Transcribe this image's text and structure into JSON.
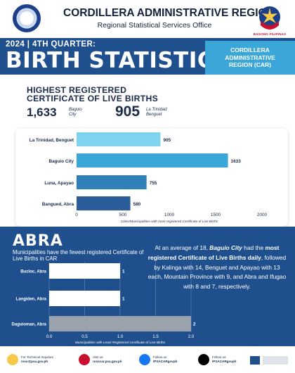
{
  "header": {
    "title": "CORDILLERA ADMINISTRATIVE REGION",
    "subtitle": "Regional Statistical Services Office",
    "logo_text": "BAGONG PILIPINAS"
  },
  "banner": {
    "kicker": "2024 | 4TH QUARTER:",
    "title": "BIRTH STATISTICS",
    "region": "CORDILLERA\nADMINISTRATIVE\nREGION (CAR)"
  },
  "highest": {
    "title": "HIGHEST REGISTERED\nCERTIFICATE OF LIVE BIRTHS",
    "stat1_value": "1,633",
    "stat1_label": "Baguio\nCity",
    "stat2_value": "905",
    "stat2_label": "La Trinidad\nBenguet"
  },
  "abra": {
    "title": "ABRA",
    "subtitle": "Municipalities have the fewest registered Certificate of Live Births in CAR",
    "summary_pre": "At an average of 18, ",
    "summary_city": "Baguio City",
    "summary_mid": " had the ",
    "summary_bold": "most registered Certificate of Live Births daily",
    "summary_post": ", followed by Kalinga with 14, Benguet and Apayao with 13 each, Mountain Province with 9, and Abra and Ifugao with 8 and 7, respectively."
  },
  "footer": {
    "inquiries": "For Technical Inquiries",
    "email": "rsso@psa.gov.ph",
    "visit": "Visit us",
    "website": "rssocar.psa.gov.ph",
    "follow1": "Follow us",
    "fb": "/PSACARgovph",
    "follow2": "Follow us",
    "x": "/PSACARgovph"
  },
  "colors": {
    "navy": "#1f4f8d",
    "accent": "#3aa7d8",
    "text": "#1a2a4a"
  },
  "chart_data": [
    {
      "type": "bar",
      "orientation": "horizontal",
      "categories": [
        "La Trinidad, Benguet",
        "Baguio City",
        "Luna, Apayao",
        "Bangued, Abra"
      ],
      "values": [
        905,
        1633,
        755,
        580
      ],
      "colors": [
        "#7fd3ee",
        "#3aa7d8",
        "#2f7fb8",
        "#2a5d9a"
      ],
      "xlim": [
        0,
        2000
      ],
      "ticks": [
        "0",
        "500",
        "1000",
        "1500",
        "2000"
      ],
      "xlabel": "Cities/Municipalities with most registered Certificate of Live Births",
      "grid": false
    },
    {
      "type": "bar",
      "orientation": "horizontal",
      "categories": [
        "Bucloc, Abra",
        "Langiden, Abra",
        "Daguioman, Abra"
      ],
      "values": [
        1,
        1,
        2
      ],
      "colors": [
        "#ffffff",
        "#ffffff",
        "#9aa3ad"
      ],
      "xlim": [
        0,
        2.0
      ],
      "ticks": [
        "0.0",
        "0.5",
        "1.0",
        "1.5",
        "2.0"
      ],
      "xlabel": "Municipalities with Least Registered Certificate of  Live Births",
      "grid": true
    }
  ]
}
